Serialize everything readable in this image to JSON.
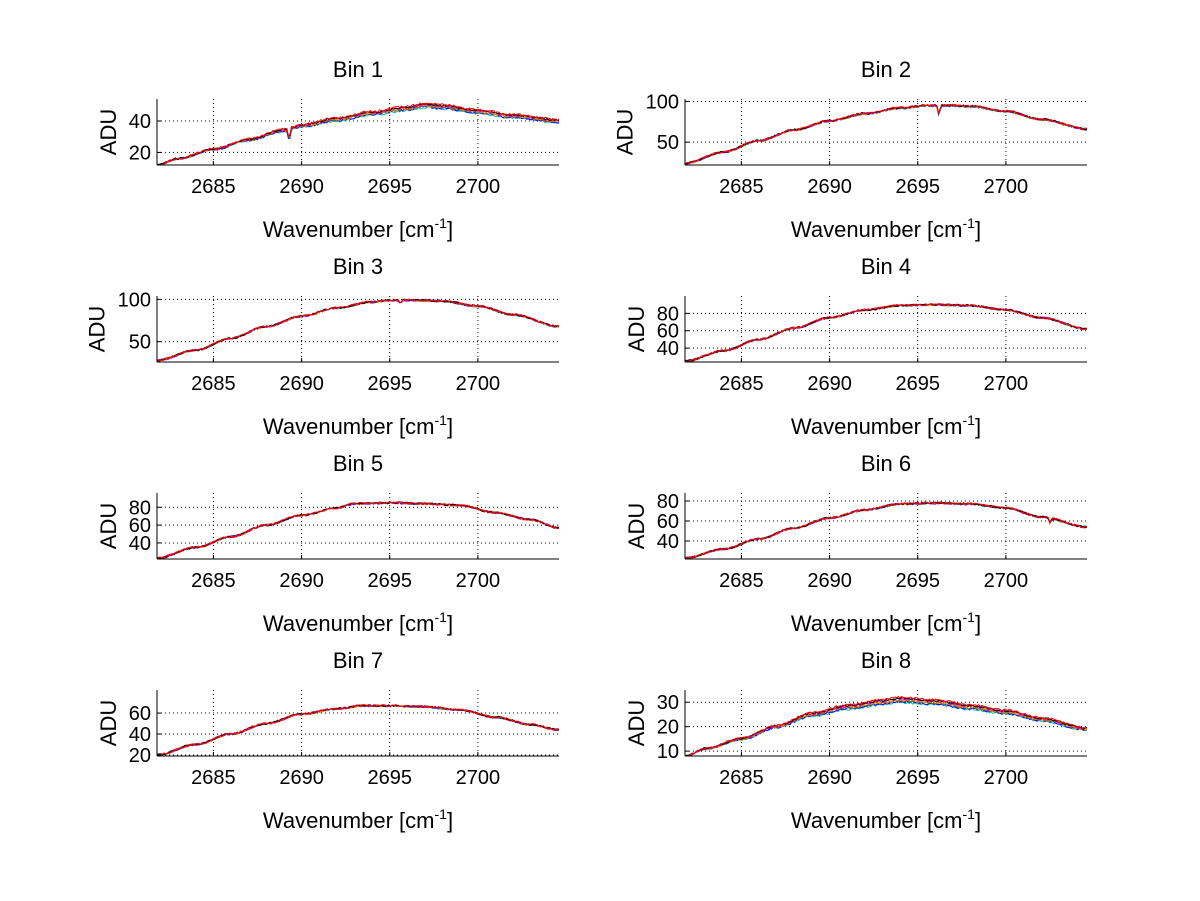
{
  "figure": {
    "type": "line",
    "colors": [
      "#00bfbf",
      "#0000ff",
      "#7f7f00",
      "#ff7f00",
      "#bf00bf",
      "#000000",
      "#ff0000"
    ]
  },
  "chart_data": [
    {
      "type": "line",
      "title": "Bin 1",
      "xlabel": "Wavenumber [cm",
      "xlabel_sup": "-1",
      "xlabel_close": "]",
      "ylabel": "ADU",
      "xlim": [
        2681.8,
        2704.6
      ],
      "ylim": [
        12,
        54
      ],
      "xticks": [
        "2685",
        "2690",
        "2695",
        "2700"
      ],
      "xtick_values": [
        2685,
        2690,
        2695,
        2700
      ],
      "yticks": [
        "20",
        "40"
      ],
      "ytick_values": [
        20,
        40
      ],
      "series_count": 7,
      "spread": 3.0,
      "x_knots": [
        2681.8,
        2683,
        2685,
        2687,
        2689,
        2690,
        2692,
        2694,
        2696,
        2697,
        2698,
        2700,
        2702,
        2704.6
      ],
      "y_knots": [
        12,
        16,
        22,
        28,
        34,
        37,
        41,
        45,
        48,
        50,
        49,
        46,
        43,
        40
      ],
      "dips": [
        {
          "x": 2689.3,
          "depth": 7
        }
      ]
    },
    {
      "type": "line",
      "title": "Bin 2",
      "xlabel": "Wavenumber [cm",
      "xlabel_sup": "-1",
      "xlabel_close": "]",
      "ylabel": "ADU",
      "xlim": [
        2681.8,
        2704.6
      ],
      "ylim": [
        22,
        103
      ],
      "xticks": [
        "2685",
        "2690",
        "2695",
        "2700"
      ],
      "xtick_values": [
        2685,
        2690,
        2695,
        2700
      ],
      "yticks": [
        "50",
        "100"
      ],
      "ytick_values": [
        50,
        100
      ],
      "series_count": 7,
      "spread": 1.0,
      "x_knots": [
        2681.8,
        2684,
        2686,
        2688,
        2690,
        2692,
        2694,
        2695.5,
        2697,
        2698,
        2700,
        2702,
        2704.6
      ],
      "y_knots": [
        24,
        38,
        52,
        65,
        76,
        85,
        92,
        95,
        95,
        94,
        88,
        78,
        66
      ],
      "dips": [
        {
          "x": 2696.2,
          "depth": 12
        }
      ]
    },
    {
      "type": "line",
      "title": "Bin 3",
      "xlabel": "Wavenumber [cm",
      "xlabel_sup": "-1",
      "xlabel_close": "]",
      "ylabel": "ADU",
      "xlim": [
        2681.8,
        2704.6
      ],
      "ylim": [
        26,
        104
      ],
      "xticks": [
        "2685",
        "2690",
        "2695",
        "2700"
      ],
      "xtick_values": [
        2685,
        2690,
        2695,
        2700
      ],
      "yticks": [
        "50",
        "100"
      ],
      "ytick_values": [
        50,
        100
      ],
      "series_count": 7,
      "spread": 0.5,
      "x_knots": [
        2681.8,
        2684,
        2686,
        2688,
        2690,
        2692,
        2694,
        2695,
        2696.5,
        2698,
        2700,
        2702,
        2704.6
      ],
      "y_knots": [
        28,
        40,
        54,
        68,
        80,
        90,
        97,
        99,
        99,
        98,
        92,
        82,
        68
      ],
      "dips": [
        {
          "x": 2695.6,
          "depth": 4
        }
      ]
    },
    {
      "type": "line",
      "title": "Bin 4",
      "xlabel": "Wavenumber [cm",
      "xlabel_sup": "-1",
      "xlabel_close": "]",
      "ylabel": "ADU",
      "xlim": [
        2681.8,
        2704.6
      ],
      "ylim": [
        24,
        100
      ],
      "xticks": [
        "2685",
        "2690",
        "2695",
        "2700"
      ],
      "xtick_values": [
        2685,
        2690,
        2695,
        2700
      ],
      "yticks": [
        "40",
        "60",
        "80"
      ],
      "ytick_values": [
        40,
        60,
        80
      ],
      "series_count": 7,
      "spread": 0.5,
      "x_knots": [
        2681.8,
        2684,
        2686,
        2688,
        2690,
        2692,
        2694,
        2696,
        2698,
        2700,
        2702,
        2704.6
      ],
      "y_knots": [
        25,
        37,
        50,
        63,
        75,
        84,
        89,
        90,
        89,
        84,
        75,
        62
      ],
      "dips": []
    },
    {
      "type": "line",
      "title": "Bin 5",
      "xlabel": "Wavenumber [cm",
      "xlabel_sup": "-1",
      "xlabel_close": "]",
      "ylabel": "ADU",
      "xlim": [
        2681.8,
        2704.6
      ],
      "ylim": [
        22,
        96
      ],
      "xticks": [
        "2685",
        "2690",
        "2695",
        "2700"
      ],
      "xtick_values": [
        2685,
        2690,
        2695,
        2700
      ],
      "yticks": [
        "40",
        "60",
        "80"
      ],
      "ytick_values": [
        40,
        60,
        80
      ],
      "series_count": 7,
      "spread": 0.5,
      "x_knots": [
        2681.8,
        2684,
        2686,
        2688,
        2690,
        2692,
        2693,
        2695,
        2697,
        2699,
        2701,
        2703,
        2704.6
      ],
      "y_knots": [
        23,
        35,
        47,
        60,
        71,
        79,
        84,
        85,
        84,
        82,
        74,
        66,
        57
      ],
      "dips": []
    },
    {
      "type": "line",
      "title": "Bin 6",
      "xlabel": "Wavenumber [cm",
      "xlabel_sup": "-1",
      "xlabel_close": "]",
      "ylabel": "ADU",
      "xlim": [
        2681.8,
        2704.6
      ],
      "ylim": [
        22,
        88
      ],
      "xticks": [
        "2685",
        "2690",
        "2695",
        "2700"
      ],
      "xtick_values": [
        2685,
        2690,
        2695,
        2700
      ],
      "yticks": [
        "40",
        "60",
        "80"
      ],
      "ytick_values": [
        40,
        60,
        80
      ],
      "series_count": 7,
      "spread": 0.5,
      "x_knots": [
        2681.8,
        2684,
        2686,
        2688,
        2690,
        2692,
        2694,
        2696,
        2698,
        2700,
        2702,
        2704.6
      ],
      "y_knots": [
        23,
        32,
        42,
        53,
        63,
        71,
        77,
        78,
        77,
        73,
        64,
        54
      ],
      "dips": [
        {
          "x": 2702.5,
          "depth": 5
        }
      ]
    },
    {
      "type": "line",
      "title": "Bin 7",
      "xlabel": "Wavenumber [cm",
      "xlabel_sup": "-1",
      "xlabel_close": "]",
      "ylabel": "ADU",
      "xlim": [
        2681.8,
        2704.6
      ],
      "ylim": [
        19,
        82
      ],
      "xticks": [
        "2685",
        "2690",
        "2695",
        "2700"
      ],
      "xtick_values": [
        2685,
        2690,
        2695,
        2700
      ],
      "yticks": [
        "20",
        "40",
        "60"
      ],
      "ytick_values": [
        20,
        40,
        60
      ],
      "series_count": 7,
      "spread": 0.5,
      "x_knots": [
        2681.8,
        2684,
        2686,
        2688,
        2690,
        2692,
        2693.5,
        2695,
        2697,
        2699,
        2701,
        2703,
        2704.6
      ],
      "y_knots": [
        20,
        30,
        40,
        50,
        59,
        64,
        67,
        67,
        66,
        63,
        56,
        49,
        44
      ],
      "dips": []
    },
    {
      "type": "line",
      "title": "Bin 8",
      "xlabel": "Wavenumber [cm",
      "xlabel_sup": "-1",
      "xlabel_close": "]",
      "ylabel": "ADU",
      "xlim": [
        2681.8,
        2704.6
      ],
      "ylim": [
        8,
        35
      ],
      "xticks": [
        "2685",
        "2690",
        "2695",
        "2700"
      ],
      "xtick_values": [
        2685,
        2690,
        2695,
        2700
      ],
      "yticks": [
        "10",
        "20",
        "30"
      ],
      "ytick_values": [
        10,
        20,
        30
      ],
      "series_count": 7,
      "spread": 2.5,
      "x_knots": [
        2681.8,
        2683,
        2685,
        2687,
        2689,
        2691,
        2693,
        2694,
        2696,
        2698,
        2700,
        2702,
        2704.6
      ],
      "y_knots": [
        8,
        11,
        15,
        20,
        25,
        28,
        30,
        31,
        30,
        28,
        26,
        23,
        19
      ],
      "dips": []
    }
  ]
}
